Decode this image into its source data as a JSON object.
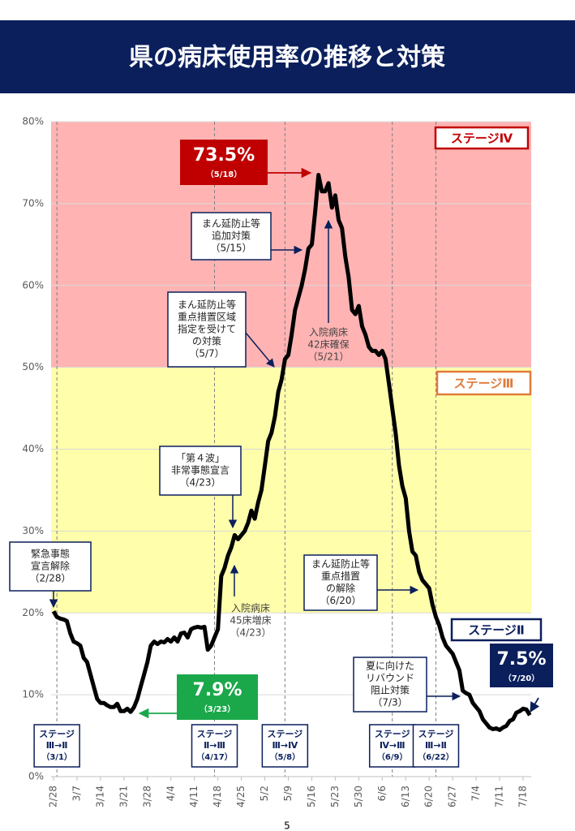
{
  "chart_data": {
    "type": "line",
    "title": "県の病床使用率の推移と対策",
    "categories": [
      "2/28",
      null,
      null,
      null,
      null,
      null,
      null,
      "3/7",
      null,
      null,
      null,
      null,
      null,
      null,
      "3/14",
      null,
      null,
      null,
      null,
      null,
      null,
      "3/21",
      null,
      null,
      null,
      null,
      null,
      null,
      "3/28",
      null,
      null,
      null,
      null,
      null,
      null,
      "4/4",
      null,
      null,
      null,
      null,
      null,
      null,
      "4/11",
      null,
      null,
      null,
      null,
      null,
      null,
      "4/18",
      null,
      null,
      null,
      null,
      null,
      null,
      "4/25",
      null,
      null,
      null,
      null,
      null,
      null,
      "5/2",
      null,
      null,
      null,
      null,
      null,
      null,
      "5/9",
      null,
      null,
      null,
      null,
      null,
      null,
      "5/16",
      null,
      null,
      null,
      null,
      null,
      null,
      "5/23",
      null,
      null,
      null,
      null,
      null,
      null,
      "5/30",
      null,
      null,
      null,
      null,
      null,
      null,
      "6/6",
      null,
      null,
      null,
      null,
      null,
      null,
      "6/13",
      null,
      null,
      null,
      null,
      null,
      null,
      "6/20",
      null,
      null,
      null,
      null,
      null,
      null,
      "6/27",
      null,
      null,
      null,
      null,
      null,
      null,
      "7/4",
      null,
      null,
      null,
      null,
      null,
      null,
      "7/11",
      null,
      null,
      null,
      null,
      null,
      null,
      "7/18",
      null,
      null
    ],
    "values": [
      20.2,
      19.5,
      19.3,
      19.2,
      19.0,
      17.5,
      16.5,
      16.3,
      16.0,
      14.5,
      14.0,
      12.5,
      11.0,
      9.5,
      9.0,
      9.0,
      8.7,
      8.5,
      8.5,
      8.9,
      8.0,
      8.0,
      8.3,
      7.9,
      8.5,
      9.5,
      11.0,
      12.5,
      14.0,
      16.0,
      16.5,
      16.2,
      16.5,
      16.4,
      16.8,
      16.5,
      17.0,
      16.5,
      17.5,
      17.6,
      17.0,
      18.0,
      18.2,
      18.3,
      18.2,
      18.3,
      15.5,
      16.0,
      17.0,
      18.0,
      24.5,
      25.5,
      27.0,
      28.0,
      29.5,
      29.0,
      29.5,
      30.0,
      31.0,
      32.5,
      31.5,
      33.5,
      35.0,
      38.0,
      41.0,
      42.0,
      44.0,
      47.0,
      48.5,
      51.0,
      51.5,
      54.0,
      57.0,
      58.5,
      60.0,
      62.0,
      64.5,
      65.0,
      69.0,
      73.5,
      71.5,
      71.5,
      72.5,
      69.5,
      71.0,
      68.0,
      67.0,
      63.5,
      61.0,
      57.0,
      56.5,
      57.5,
      55.0,
      54.0,
      52.5,
      52.0,
      52.0,
      51.5,
      52.0,
      51.0,
      48.0,
      45.0,
      42.0,
      38.0,
      35.5,
      34.0,
      30.0,
      27.5,
      27.0,
      25.0,
      24.0,
      23.5,
      23.0,
      21.0,
      19.5,
      18.5,
      17.0,
      16.0,
      15.5,
      15.0,
      14.0,
      13.0,
      10.5,
      10.2,
      10.0,
      9.0,
      8.5,
      8.0,
      7.0,
      6.5,
      6.0,
      5.8,
      5.9,
      5.7,
      6.0,
      6.2,
      6.8,
      7.0,
      7.8,
      8.0,
      8.3,
      8.2,
      7.5
    ],
    "color": "#000000",
    "ylim": [
      0,
      80
    ],
    "yticks": [
      {
        "value": 0,
        "label": "0%"
      },
      {
        "value": 10,
        "label": "10%"
      },
      {
        "value": 20,
        "label": "20%"
      },
      {
        "value": 30,
        "label": "30%"
      },
      {
        "value": 40,
        "label": "40%"
      },
      {
        "value": 50,
        "label": "50%"
      },
      {
        "value": 60,
        "label": "60%"
      },
      {
        "value": 70,
        "label": "70%"
      },
      {
        "value": 80,
        "label": "80%"
      }
    ],
    "grid": true,
    "zones": [
      {
        "label": "ステージⅣ",
        "from": 50,
        "to": 80,
        "color": "#ffb3b3",
        "border": "#c00000"
      },
      {
        "label": "ステージⅢ",
        "from": 20,
        "to": 50,
        "color": "#ffffab",
        "border": "#e07b39"
      },
      {
        "label": "ステージⅡ",
        "from": 0,
        "to": 20,
        "color": "#ffffff",
        "border": "#0a1f5c"
      }
    ],
    "stage_events": [
      {
        "lines": [
          "ステージ",
          "Ⅲ→Ⅱ",
          "（3/1）"
        ]
      },
      {
        "lines": [
          "ステージ",
          "Ⅱ→Ⅲ",
          "（4/17）"
        ]
      },
      {
        "lines": [
          "ステージ",
          "Ⅲ→Ⅳ",
          "（5/8）"
        ]
      },
      {
        "lines": [
          "ステージ",
          "Ⅳ→Ⅲ",
          "（6/9）"
        ]
      },
      {
        "lines": [
          "ステージ",
          "Ⅲ→Ⅱ",
          "（6/22）"
        ]
      }
    ],
    "annotations": [
      {
        "lines": [
          "緊急事態",
          "宣言解除",
          "（2/28）"
        ]
      },
      {
        "lines": [
          "「第４波」",
          "非常事態宣言",
          "（4/23）"
        ]
      },
      {
        "lines": [
          "入院病床",
          "45床増床",
          "（4/23）"
        ]
      },
      {
        "lines": [
          "まん延防止等",
          "重点措置区域",
          "指定を受けて",
          "の対策",
          "（5/7）"
        ]
      },
      {
        "lines": [
          "まん延防止等",
          "追加対策",
          "（5/15）"
        ]
      },
      {
        "lines": [
          "入院病床",
          "42床確保",
          "（5/21）"
        ]
      },
      {
        "lines": [
          "まん延防止等",
          "重点措置",
          "の解除",
          "（6/20）"
        ]
      },
      {
        "lines": [
          "夏に向けた",
          "リバウンド",
          "阻止対策",
          "（7/3）"
        ]
      }
    ],
    "highlights": [
      {
        "text": "73.5%",
        "date": "（5/18）",
        "color": "#c00000"
      },
      {
        "text": "7.9%",
        "date": "（3/23）",
        "color": "#1aa84a"
      },
      {
        "text": "7.5%",
        "date": "（7/20）",
        "color": "#0a1f5c"
      }
    ],
    "page_number": "5"
  }
}
